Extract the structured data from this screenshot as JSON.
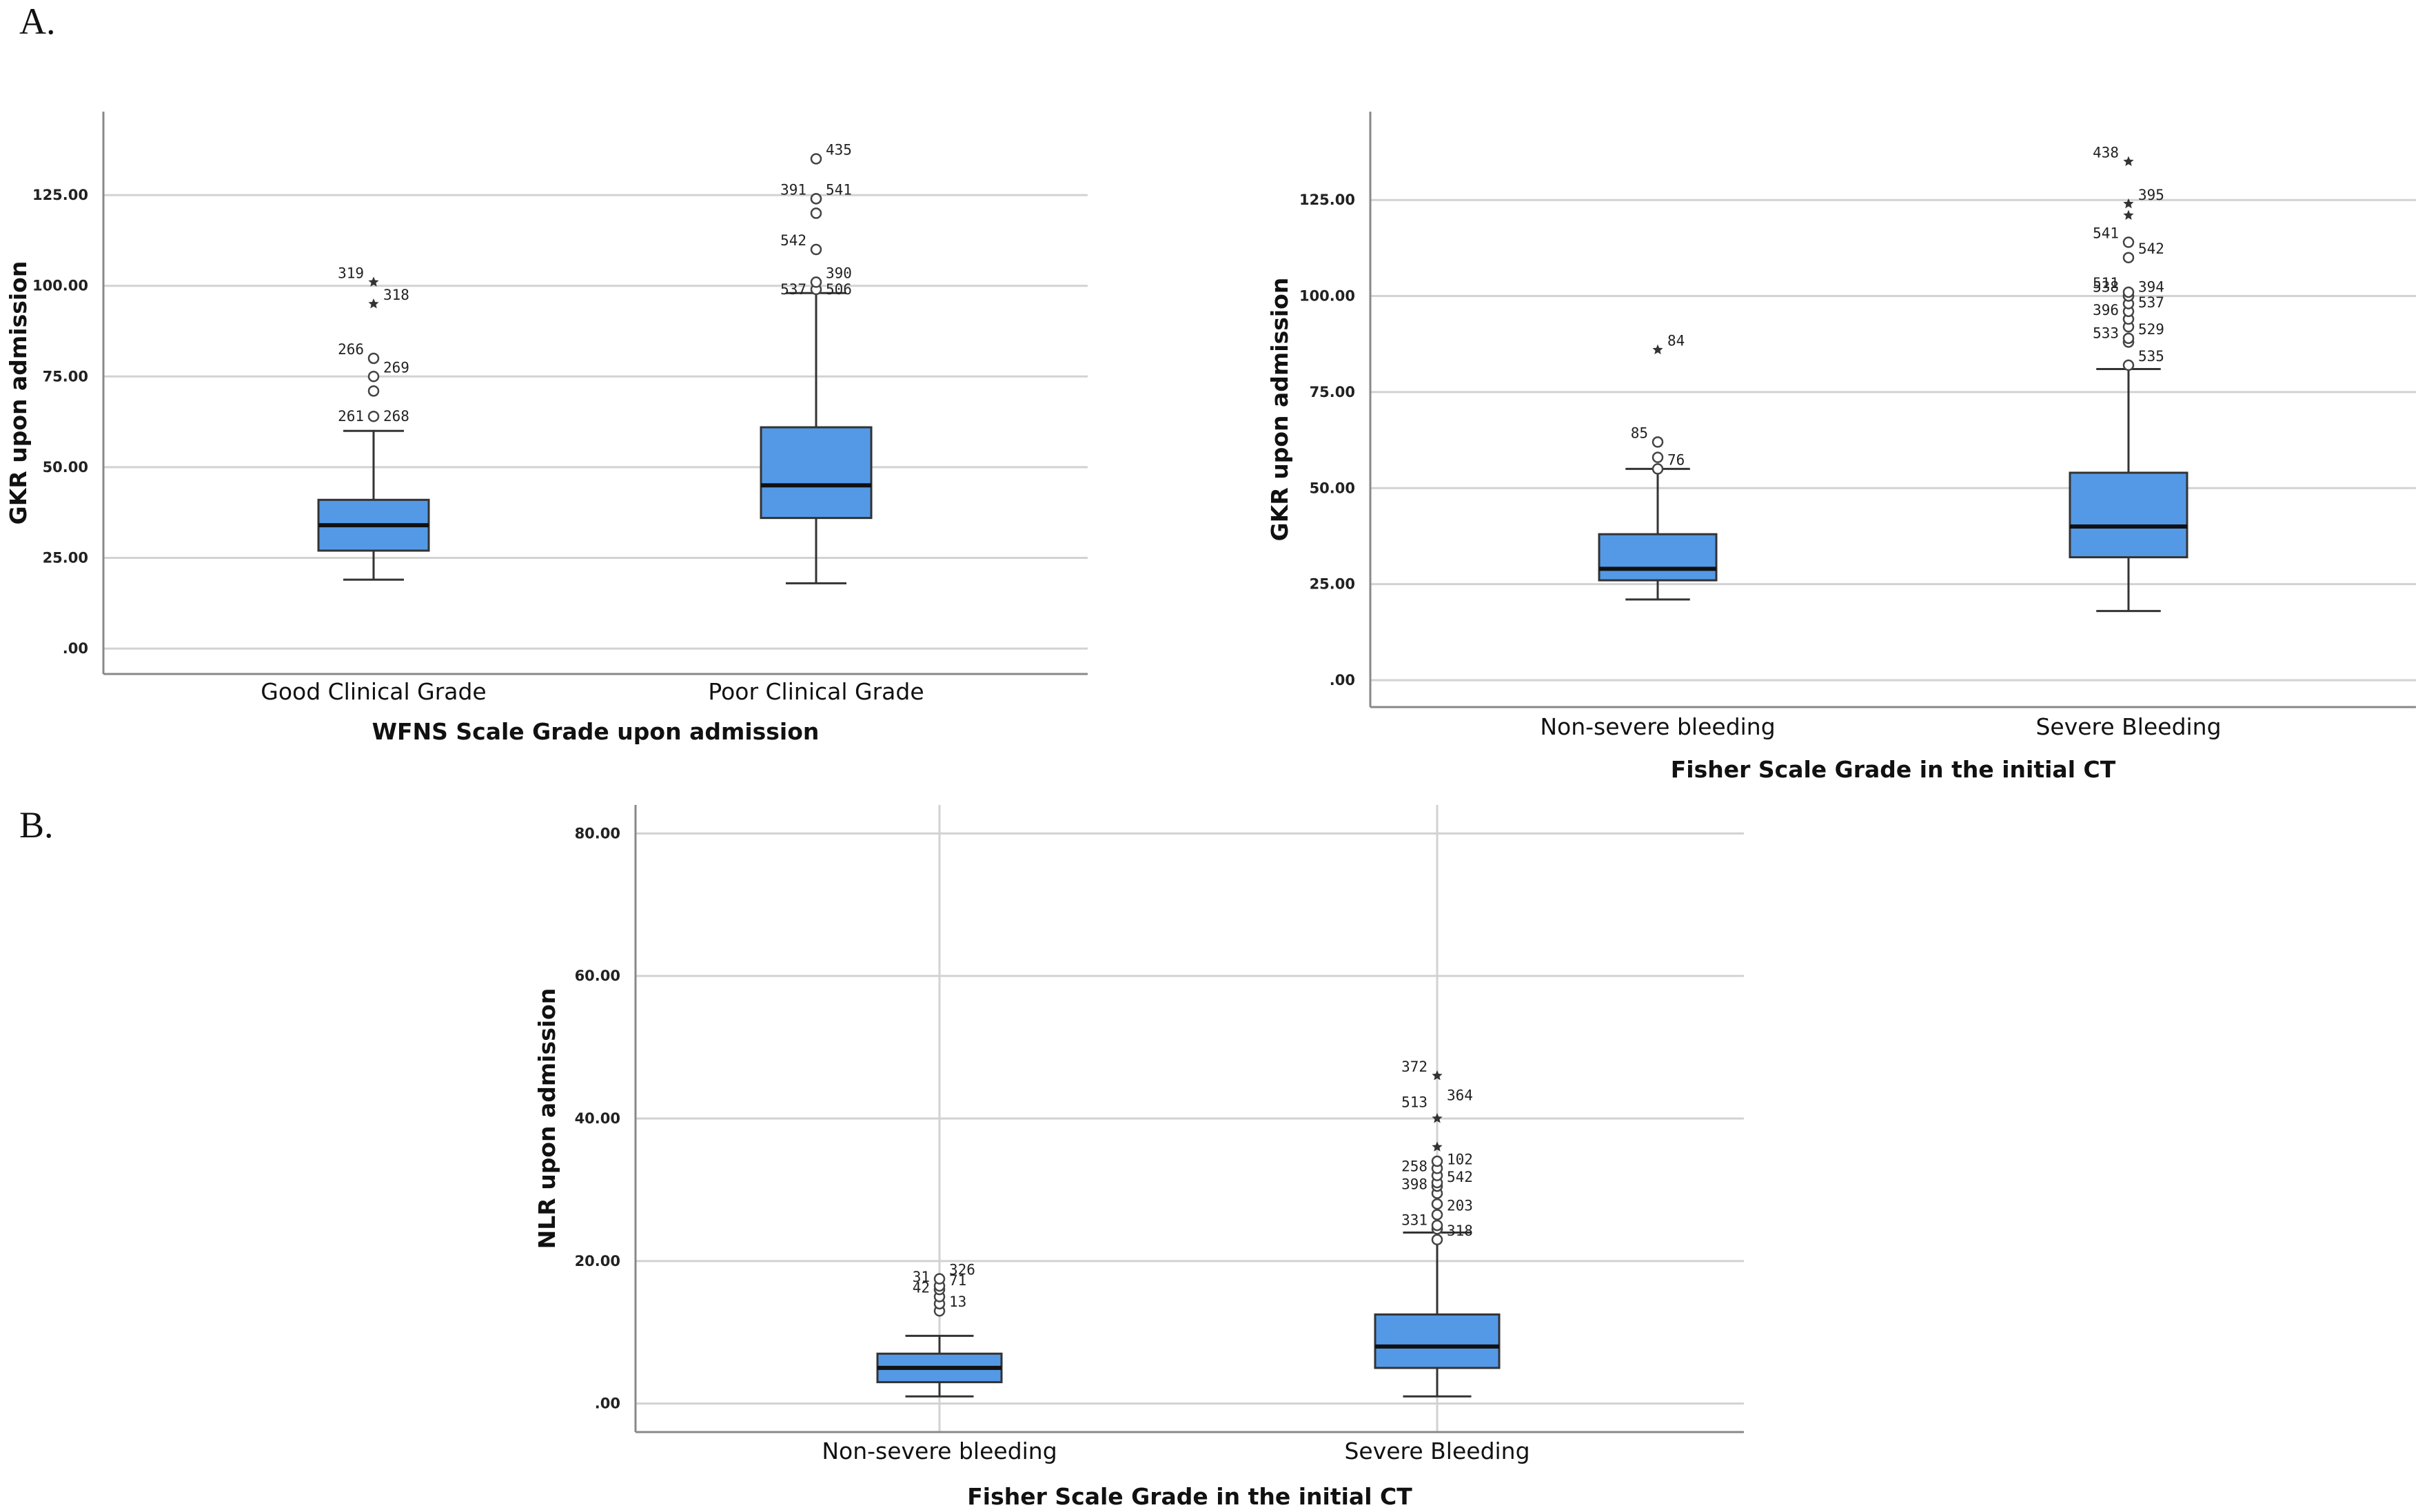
{
  "panels": {
    "a": "A.",
    "b": "B."
  },
  "colors": {
    "box": "#5499e6",
    "grid": "#d2d2d2",
    "axis": "#888888",
    "median": "#111111"
  },
  "chart_data": [
    {
      "type": "boxplot",
      "xlabel": "WFNS Scale Grade upon admission",
      "ylabel": "GKR upon admission",
      "ylim": [
        -7,
        148
      ],
      "yticks": [
        0,
        25,
        50,
        75,
        100,
        125
      ],
      "ytick_labels": [
        ".00",
        "25.00",
        "50.00",
        "75.00",
        "100.00",
        "125.00"
      ],
      "grid_x": false,
      "categories": [
        "Good Clinical Grade",
        "Poor Clinical Grade"
      ],
      "boxes": [
        {
          "whisker_low": 19,
          "q1": 27,
          "median": 34,
          "q3": 41,
          "whisker_high": 60,
          "outliers": [
            {
              "value": 64,
              "label": "261 268",
              "mark": "circle"
            },
            {
              "value": 71,
              "label": "",
              "mark": "circle"
            },
            {
              "value": 75,
              "label": "269",
              "mark": "circle"
            },
            {
              "value": 80,
              "label": "266",
              "mark": "circle"
            },
            {
              "value": 95,
              "label": "318",
              "mark": "star"
            },
            {
              "value": 101,
              "label": "319",
              "mark": "star"
            }
          ]
        },
        {
          "whisker_low": 18,
          "q1": 36,
          "median": 45,
          "q3": 61,
          "whisker_high": 98,
          "outliers": [
            {
              "value": 99,
              "label": "537 506",
              "mark": "circle"
            },
            {
              "value": 101,
              "label": "390",
              "mark": "circle"
            },
            {
              "value": 110,
              "label": "542",
              "mark": "circle"
            },
            {
              "value": 120,
              "label": "",
              "mark": "circle"
            },
            {
              "value": 124,
              "label": "541",
              "mark": "circle"
            },
            {
              "value": 124,
              "label": "391",
              "mark": "circle"
            },
            {
              "value": 135,
              "label": "435",
              "mark": "circle"
            }
          ]
        }
      ]
    },
    {
      "type": "boxplot",
      "xlabel": "Fisher Scale Grade in the initial CT",
      "ylabel": "GKR upon admission",
      "ylim": [
        -7,
        148
      ],
      "yticks": [
        0,
        25,
        50,
        75,
        100,
        125
      ],
      "ytick_labels": [
        ".00",
        "25.00",
        "50.00",
        "75.00",
        "100.00",
        "125.00"
      ],
      "grid_x": false,
      "categories": [
        "Non-severe bleeding",
        "Severe Bleeding"
      ],
      "boxes": [
        {
          "whisker_low": 21,
          "q1": 26,
          "median": 29,
          "q3": 38,
          "whisker_high": 55,
          "outliers": [
            {
              "value": 55,
              "label": "76",
              "mark": "circle"
            },
            {
              "value": 58,
              "label": "",
              "mark": "circle"
            },
            {
              "value": 62,
              "label": "85",
              "mark": "circle"
            },
            {
              "value": 86,
              "label": "84",
              "mark": "star"
            }
          ]
        },
        {
          "whisker_low": 18,
          "q1": 32,
          "median": 40,
          "q3": 54,
          "whisker_high": 81,
          "outliers": [
            {
              "value": 82,
              "label": "535",
              "mark": "circle"
            },
            {
              "value": 88,
              "label": "533",
              "mark": "circle"
            },
            {
              "value": 89,
              "label": "529",
              "mark": "circle"
            },
            {
              "value": 92,
              "label": "",
              "mark": "circle"
            },
            {
              "value": 94,
              "label": "396",
              "mark": "circle"
            },
            {
              "value": 96,
              "label": "537",
              "mark": "circle"
            },
            {
              "value": 98,
              "label": "",
              "mark": "circle"
            },
            {
              "value": 100,
              "label": "538",
              "mark": "circle"
            },
            {
              "value": 100,
              "label": "394",
              "mark": "circle"
            },
            {
              "value": 101,
              "label": "511",
              "mark": "circle"
            },
            {
              "value": 110,
              "label": "542",
              "mark": "circle"
            },
            {
              "value": 114,
              "label": "541",
              "mark": "circle"
            },
            {
              "value": 121,
              "label": "",
              "mark": "star"
            },
            {
              "value": 124,
              "label": "395",
              "mark": "star"
            },
            {
              "value": 135,
              "label": "438",
              "mark": "star"
            }
          ]
        }
      ]
    },
    {
      "type": "boxplot",
      "xlabel": "Fisher Scale Grade in the initial CT",
      "ylabel": "NLR upon admission",
      "ylim": [
        -4,
        84
      ],
      "yticks": [
        0,
        20,
        40,
        60,
        80
      ],
      "ytick_labels": [
        ".00",
        "20.00",
        "40.00",
        "60.00",
        "80.00"
      ],
      "grid_x": true,
      "categories": [
        "Non-severe bleeding",
        "Severe Bleeding"
      ],
      "boxes": [
        {
          "whisker_low": 1,
          "q1": 3,
          "median": 5,
          "q3": 7,
          "whisker_high": 9.5,
          "outliers": [
            {
              "value": 13,
              "label": "13",
              "mark": "circle"
            },
            {
              "value": 14,
              "label": "",
              "mark": "circle"
            },
            {
              "value": 15,
              "label": "42",
              "mark": "circle"
            },
            {
              "value": 16,
              "label": "71",
              "mark": "circle"
            },
            {
              "value": 16.5,
              "label": "31",
              "mark": "circle"
            },
            {
              "value": 17.5,
              "label": "326",
              "mark": "circle"
            }
          ]
        },
        {
          "whisker_low": 1,
          "q1": 5,
          "median": 8,
          "q3": 12.5,
          "whisker_high": 24,
          "outliers": [
            {
              "value": 23,
              "label": "318",
              "mark": "circle"
            },
            {
              "value": 24.5,
              "label": "331",
              "mark": "circle"
            },
            {
              "value": 25,
              "label": "",
              "mark": "circle"
            },
            {
              "value": 26.5,
              "label": "203",
              "mark": "circle"
            },
            {
              "value": 28,
              "label": "",
              "mark": "circle"
            },
            {
              "value": 29.5,
              "label": "398",
              "mark": "circle"
            },
            {
              "value": 30.5,
              "label": "542",
              "mark": "circle"
            },
            {
              "value": 31,
              "label": "",
              "mark": "circle"
            },
            {
              "value": 32,
              "label": "258",
              "mark": "circle"
            },
            {
              "value": 33,
              "label": "102",
              "mark": "circle"
            },
            {
              "value": 34,
              "label": "",
              "mark": "circle"
            },
            {
              "value": 36,
              "label": "",
              "mark": "star"
            },
            {
              "value": 40,
              "label": "",
              "mark": "star"
            },
            {
              "value": 41,
              "label": "513",
              "mark": "label"
            },
            {
              "value": 42,
              "label": "364",
              "mark": "label"
            },
            {
              "value": 46,
              "label": "372",
              "mark": "star"
            }
          ]
        }
      ]
    }
  ]
}
